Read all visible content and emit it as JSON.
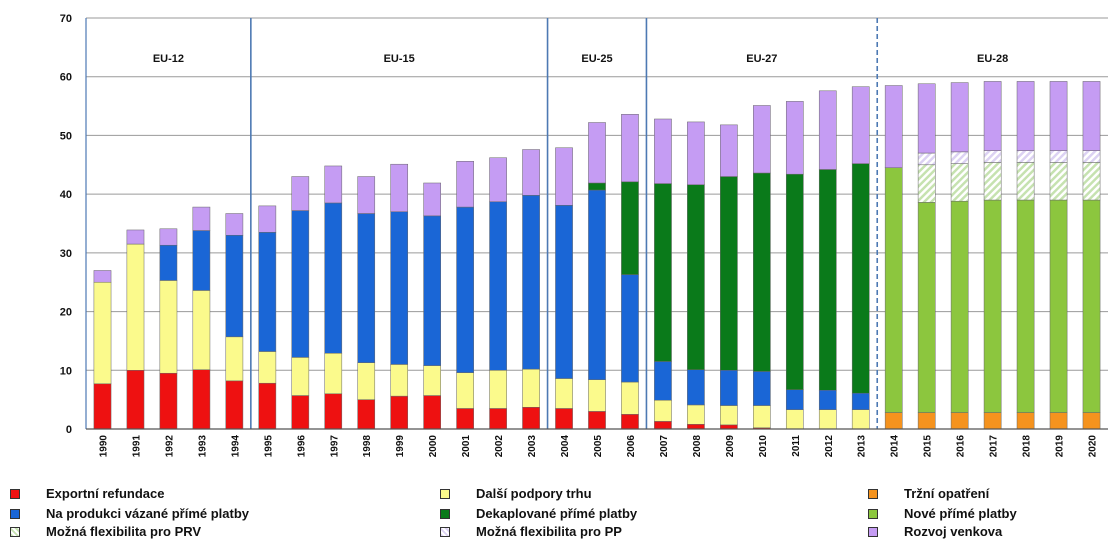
{
  "chart_data": {
    "type": "bar",
    "stacked": true,
    "title": "",
    "xlabel": "",
    "ylabel": "",
    "ylim": [
      0,
      70
    ],
    "yticks": [
      0,
      10,
      20,
      30,
      40,
      50,
      60,
      70
    ],
    "grid": true,
    "categories": [
      "1990",
      "1991",
      "1992",
      "1993",
      "1994",
      "1995",
      "1996",
      "1997",
      "1998",
      "1999",
      "2000",
      "2001",
      "2002",
      "2003",
      "2004",
      "2005",
      "2006",
      "2007",
      "2008",
      "2009",
      "2010",
      "2011",
      "2012",
      "2013",
      "2014",
      "2015",
      "2016",
      "2017",
      "2018",
      "2019",
      "2020"
    ],
    "periods": [
      {
        "label": "EU-12",
        "from": "1990",
        "to": "1994",
        "divider": "solid"
      },
      {
        "label": "EU-15",
        "from": "1995",
        "to": "2003",
        "divider": "solid"
      },
      {
        "label": "EU-25",
        "from": "2004",
        "to": "2006",
        "divider": "solid"
      },
      {
        "label": "EU-27",
        "from": "2007",
        "to": "2013",
        "divider": "dashed"
      },
      {
        "label": "EU-28",
        "from": "2014",
        "to": "2020",
        "divider": "none"
      }
    ],
    "series": [
      {
        "name": "Exportní refundace",
        "color": "#ee1111",
        "pattern": "solid",
        "values": [
          7.7,
          10,
          9.5,
          10.1,
          8.2,
          7.8,
          5.7,
          6,
          5,
          5.6,
          5.7,
          3.5,
          3.5,
          3.7,
          3.5,
          3,
          2.5,
          1.3,
          0.8,
          0.7,
          0.2,
          0,
          0,
          0,
          0,
          0,
          0,
          0,
          0,
          0,
          0
        ]
      },
      {
        "name": "Další podpory trhu",
        "color": "#fbfa8c",
        "pattern": "solid",
        "values": [
          17.3,
          21.5,
          15.8,
          13.5,
          7.5,
          5.4,
          6.5,
          6.9,
          6.3,
          5.4,
          5.1,
          6.1,
          6.5,
          6.5,
          5.1,
          5.4,
          5.5,
          3.6,
          3.3,
          3.3,
          3.8,
          3.3,
          3.3,
          3.3,
          0,
          0,
          0,
          0,
          0,
          0,
          0
        ]
      },
      {
        "name": "Na produkci vázané přímé platby",
        "color": "#1a66d6",
        "pattern": "solid",
        "values": [
          0,
          0,
          6,
          10.2,
          17.3,
          20.3,
          25,
          25.6,
          25.4,
          26,
          25.5,
          28.2,
          28.7,
          29.6,
          29.5,
          32.3,
          18.3,
          6.6,
          6,
          6,
          5.8,
          3.4,
          3.3,
          2.8,
          0,
          0,
          0,
          0,
          0,
          0,
          0
        ]
      },
      {
        "name": "Dekaplované přímé platby",
        "color": "#0a7a1a",
        "pattern": "solid",
        "values": [
          0,
          0,
          0,
          0,
          0,
          0,
          0,
          0,
          0,
          0,
          0,
          0,
          0,
          0,
          0,
          1.2,
          15.8,
          30.3,
          31.5,
          33,
          33.8,
          36.7,
          37.6,
          39.1,
          0,
          0,
          0,
          0,
          0,
          0,
          0
        ]
      },
      {
        "name": "Tržní opatření",
        "color": "#f5931e",
        "pattern": "solid",
        "values": [
          0,
          0,
          0,
          0,
          0,
          0,
          0,
          0,
          0,
          0,
          0,
          0,
          0,
          0,
          0,
          0,
          0,
          0,
          0,
          0,
          0,
          0,
          0,
          0,
          2.8,
          2.8,
          2.8,
          2.8,
          2.8,
          2.8,
          2.8
        ]
      },
      {
        "name": "Nové přímé platby",
        "color": "#8cc63e",
        "pattern": "solid",
        "values": [
          0,
          0,
          0,
          0,
          0,
          0,
          0,
          0,
          0,
          0,
          0,
          0,
          0,
          0,
          0,
          0,
          0,
          0,
          0,
          0,
          0,
          0,
          0,
          0,
          41.7,
          35.8,
          36,
          36.2,
          36.2,
          36.2,
          36.2
        ]
      },
      {
        "name": "Možná flexibilita pro PRV",
        "color": "#c6e2b0",
        "pattern": "hatch",
        "values": [
          0,
          0,
          0,
          0,
          0,
          0,
          0,
          0,
          0,
          0,
          0,
          0,
          0,
          0,
          0,
          0,
          0,
          0,
          0,
          0,
          0,
          0,
          0,
          0,
          0,
          6.4,
          6.4,
          6.4,
          6.4,
          6.4,
          6.4
        ]
      },
      {
        "name": "Možná flexibilita pro PP",
        "color": "#dcd2f3",
        "pattern": "hatch",
        "values": [
          0,
          0,
          0,
          0,
          0,
          0,
          0,
          0,
          0,
          0,
          0,
          0,
          0,
          0,
          0,
          0,
          0,
          0,
          0,
          0,
          0,
          0,
          0,
          0,
          0,
          2,
          2,
          2,
          2,
          2,
          2
        ]
      },
      {
        "name": "Rozvoj venkova",
        "color": "#c59cf3",
        "pattern": "solid",
        "values": [
          2,
          2.4,
          2.8,
          4,
          3.7,
          4.5,
          5.8,
          6.3,
          6.3,
          8.1,
          5.6,
          7.8,
          7.5,
          7.8,
          9.8,
          10.3,
          11.5,
          11,
          10.7,
          8.8,
          11.5,
          12.4,
          13.4,
          13.1,
          14,
          11.8,
          11.8,
          11.8,
          11.8,
          11.8,
          11.8
        ]
      }
    ],
    "legend_order": [
      "Exportní refundace",
      "Na produkci vázané přímé platby",
      "Možná flexibilita pro PRV",
      "Další podpory trhu",
      "Dekaplované přímé platby",
      "Možná flexibilita pro PP",
      "Tržní opatření",
      "Nové přímé platby",
      "Rozvoj venkova"
    ],
    "legend_placement": "bottom"
  }
}
